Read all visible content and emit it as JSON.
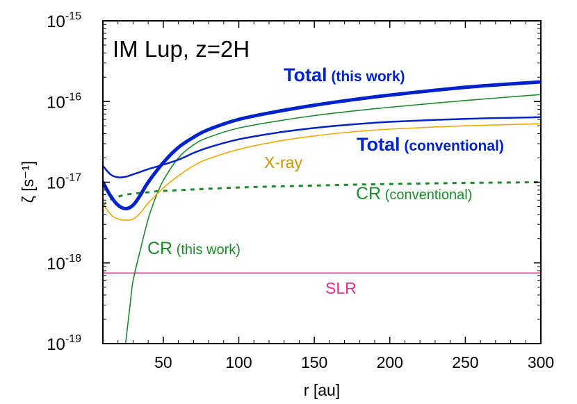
{
  "chart_data": {
    "type": "line",
    "title": "IM Lup, z=2H",
    "xlabel": "r [au]",
    "ylabel": "ζ [s⁻¹]",
    "xlim": [
      10,
      300
    ],
    "ylim": [
      1e-19,
      1e-15
    ],
    "yscale": "log",
    "xticks": [
      {
        "value": 50,
        "label": "50"
      },
      {
        "value": 100,
        "label": "100"
      },
      {
        "value": 150,
        "label": "150"
      },
      {
        "value": 200,
        "label": "200"
      },
      {
        "value": 250,
        "label": "250"
      },
      {
        "value": 300,
        "label": "300"
      }
    ],
    "yticks": [
      {
        "value": 1e-19,
        "base": "10",
        "exp": "-19"
      },
      {
        "value": 1e-18,
        "base": "10",
        "exp": "-18"
      },
      {
        "value": 1e-17,
        "base": "10",
        "exp": "-17"
      },
      {
        "value": 1e-16,
        "base": "10",
        "exp": "-16"
      },
      {
        "value": 1e-15,
        "base": "10",
        "exp": "-15"
      }
    ],
    "series": [
      {
        "name": "Total (this work)",
        "color": "#0022cc",
        "width": 5,
        "dash": "",
        "x": [
          10,
          15,
          20,
          25,
          30,
          35,
          40,
          50,
          60,
          70,
          80,
          100,
          125,
          150,
          175,
          200,
          250,
          300
        ],
        "y": [
          1e-17,
          6.8e-18,
          5.2e-18,
          4.7e-18,
          5.2e-18,
          7e-18,
          1e-17,
          1.75e-17,
          2.7e-17,
          3.6e-17,
          4.5e-17,
          6e-17,
          7.5e-17,
          9e-17,
          1.05e-16,
          1.2e-16,
          1.5e-16,
          1.75e-16
        ]
      },
      {
        "name": "Total (conventional)",
        "color": "#0022cc",
        "width": 2.5,
        "dash": "",
        "x": [
          10,
          15,
          20,
          25,
          30,
          40,
          50,
          60,
          70,
          80,
          100,
          125,
          150,
          175,
          200,
          250,
          300
        ],
        "y": [
          1.6e-17,
          1.25e-17,
          1.15e-17,
          1.17e-17,
          1.25e-17,
          1.45e-17,
          1.65e-17,
          1.9e-17,
          2.3e-17,
          2.7e-17,
          3.4e-17,
          4.1e-17,
          4.7e-17,
          5.2e-17,
          5.6e-17,
          6.1e-17,
          6.4e-17
        ]
      },
      {
        "name": "X-ray",
        "color": "#f5a800",
        "width": 1.6,
        "dash": "",
        "x": [
          10,
          15,
          20,
          25,
          30,
          35,
          40,
          50,
          60,
          70,
          80,
          100,
          125,
          150,
          175,
          200,
          250,
          300
        ],
        "y": [
          5.5e-18,
          4e-18,
          3.5e-18,
          3.4e-18,
          3.5e-18,
          4.2e-18,
          5.5e-18,
          8.5e-18,
          1.2e-17,
          1.6e-17,
          1.95e-17,
          2.55e-17,
          3.2e-17,
          3.75e-17,
          4.2e-17,
          4.55e-17,
          5e-17,
          5.3e-17
        ]
      },
      {
        "name": "CR (this work)",
        "color": "#1a8a2a",
        "width": 1.6,
        "dash": "",
        "x": [
          25,
          28,
          30,
          35,
          40,
          45,
          50,
          60,
          70,
          80,
          100,
          125,
          150,
          175,
          200,
          250,
          300
        ],
        "y": [
          1e-19,
          3e-19,
          6e-19,
          1.5e-18,
          3.5e-18,
          6.5e-18,
          1.05e-17,
          2e-17,
          2.9e-17,
          3.6e-17,
          4.7e-17,
          5.7e-17,
          6.7e-17,
          7.6e-17,
          8.5e-17,
          1.03e-16,
          1.22e-16
        ]
      },
      {
        "name": "CR (conventional)",
        "color": "#1a8a2a",
        "width": 3,
        "dash": "6,7",
        "x": [
          10,
          15,
          20,
          25,
          30,
          40,
          50,
          100,
          150,
          200,
          250,
          300
        ],
        "y": [
          5.2e-18,
          6.1e-18,
          6.6e-18,
          7e-18,
          7.2e-18,
          7.5e-18,
          7.8e-18,
          8.6e-18,
          9.1e-18,
          9.5e-18,
          9.8e-18,
          1e-17
        ]
      },
      {
        "name": "SLR",
        "color": "#ee2e8a",
        "width": 1.6,
        "dash": "",
        "x": [
          10,
          300
        ],
        "y": [
          7.5e-19,
          7.5e-19
        ]
      }
    ],
    "annotations": [
      {
        "id": "total-this-work",
        "main": "Total",
        "sub": " (this work)",
        "color": "#0022cc",
        "bold": true
      },
      {
        "id": "total-conventional",
        "main": "Total",
        "sub": " (conventional)",
        "color": "#0022cc",
        "bold": true
      },
      {
        "id": "xray",
        "main": "X-ray",
        "sub": "",
        "color": "#cc9200",
        "bold": false
      },
      {
        "id": "cr-conventional",
        "main": "CR",
        "sub": " (conventional)",
        "color": "#1a8a2a",
        "bold": false
      },
      {
        "id": "cr-this-work",
        "main": "CR",
        "sub": " (this work)",
        "color": "#1a8a2a",
        "bold": false
      },
      {
        "id": "slr",
        "main": "SLR",
        "sub": "",
        "color": "#ee2e8a",
        "bold": false
      }
    ]
  }
}
